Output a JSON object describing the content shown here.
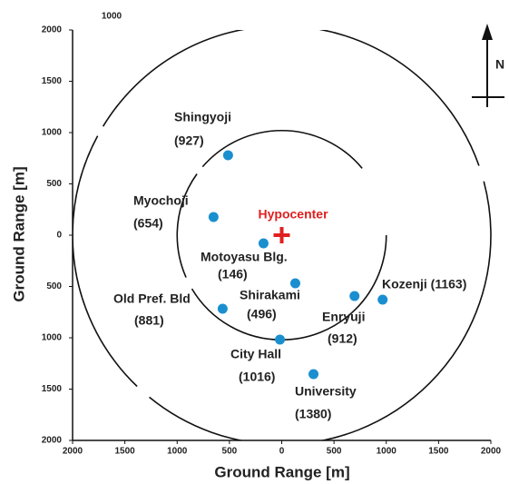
{
  "chart_data": {
    "type": "scatter",
    "xlabel": "Ground Range [m]",
    "ylabel": "Ground Range [m]",
    "top_note": "1000",
    "north": "N",
    "xlim": [
      -2000,
      2000
    ],
    "ylim": [
      -2000,
      2000
    ],
    "xticks": [
      {
        "value": -2000,
        "label": "2000"
      },
      {
        "value": -1500,
        "label": "1500"
      },
      {
        "value": -1000,
        "label": "1000"
      },
      {
        "value": -500,
        "label": "500"
      },
      0,
      500,
      1000,
      1500,
      2000
    ],
    "yticks": [
      {
        "value": -2000,
        "label": "2000"
      },
      {
        "value": -1500,
        "label": "1500"
      },
      {
        "value": -1000,
        "label": "1000"
      },
      {
        "value": -500,
        "label": "500"
      },
      0,
      500,
      1000,
      1500,
      2000
    ],
    "rings": [
      1000,
      2000
    ],
    "hypocenter": {
      "label": "Hypocenter",
      "x": 0,
      "y": 0,
      "color": "#e02020"
    },
    "sites": {
      "color": "#1a8fd0",
      "labels": [
        [
          "Shingyoji",
          "(927)"
        ],
        [
          "Myochoji",
          "(654)"
        ],
        [
          "Motoyasu Blg.",
          "(146)"
        ],
        [
          "Shirakami",
          "(496)"
        ],
        [
          "Old Pref. Bld",
          "(881)"
        ],
        [
          "City Hall",
          "(1016)"
        ],
        [
          "Enryuji",
          "(912)"
        ],
        [
          "Kozenji (1163)"
        ],
        [
          "University",
          "(1380)"
        ]
      ],
      "x": [
        -513,
        -652,
        -174,
        130,
        -565,
        -17,
        696,
        965,
        304
      ],
      "y": [
        779,
        177,
        -80,
        -469,
        -717,
        -1018,
        -593,
        -628,
        -1354
      ]
    }
  }
}
